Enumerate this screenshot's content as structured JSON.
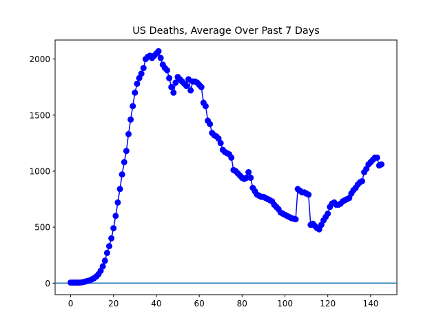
{
  "chart_data": {
    "type": "line",
    "title": "US Deaths, Average Over Past 7 Days",
    "x": [
      0,
      1,
      2,
      3,
      4,
      5,
      6,
      7,
      8,
      9,
      10,
      11,
      12,
      13,
      14,
      15,
      16,
      17,
      18,
      19,
      20,
      21,
      22,
      23,
      24,
      25,
      26,
      27,
      28,
      29,
      30,
      31,
      32,
      33,
      34,
      35,
      36,
      37,
      38,
      39,
      40,
      41,
      42,
      43,
      44,
      45,
      46,
      47,
      48,
      49,
      50,
      51,
      52,
      53,
      54,
      55,
      56,
      57,
      58,
      59,
      60,
      61,
      62,
      63,
      64,
      65,
      66,
      67,
      68,
      69,
      70,
      71,
      72,
      73,
      74,
      75,
      76,
      77,
      78,
      79,
      80,
      81,
      82,
      83,
      84,
      85,
      86,
      87,
      88,
      89,
      90,
      91,
      92,
      93,
      94,
      95,
      96,
      97,
      98,
      99,
      100,
      101,
      102,
      103,
      104,
      105,
      106,
      107,
      108,
      109,
      110,
      111,
      112,
      113,
      114,
      115,
      116,
      117,
      118,
      119,
      120,
      121,
      122,
      123,
      124,
      125,
      126,
      127,
      128,
      129,
      130,
      131,
      132,
      133,
      134,
      135,
      136,
      137,
      138,
      139,
      140,
      141,
      142,
      143,
      144,
      145
    ],
    "series": [
      {
        "color": "#0000ff",
        "values": [
          5,
          5,
          5,
          5,
          5,
          6,
          10,
          15,
          20,
          25,
          35,
          45,
          60,
          80,
          110,
          150,
          200,
          270,
          330,
          400,
          490,
          600,
          720,
          840,
          970,
          1080,
          1180,
          1330,
          1460,
          1580,
          1700,
          1780,
          1830,
          1870,
          1920,
          2000,
          2020,
          2030,
          2010,
          2030,
          2050,
          2070,
          2010,
          1950,
          1920,
          1900,
          1830,
          1750,
          1700,
          1790,
          1840,
          1820,
          1800,
          1780,
          1760,
          1820,
          1720,
          1800,
          1800,
          1790,
          1770,
          1750,
          1610,
          1580,
          1450,
          1420,
          1340,
          1320,
          1310,
          1290,
          1250,
          1190,
          1170,
          1160,
          1150,
          1120,
          1010,
          1000,
          980,
          960,
          940,
          930,
          940,
          990,
          940,
          850,
          820,
          790,
          780,
          770,
          770,
          760,
          750,
          740,
          730,
          700,
          680,
          660,
          630,
          620,
          610,
          600,
          590,
          580,
          575,
          570,
          840,
          825,
          810,
          810,
          800,
          790,
          520,
          530,
          510,
          490,
          480,
          520,
          560,
          590,
          620,
          680,
          710,
          720,
          700,
          700,
          710,
          730,
          740,
          750,
          760,
          800,
          830,
          850,
          880,
          900,
          910,
          990,
          1020,
          1060,
          1080,
          1100,
          1120,
          1120,
          1050,
          1060
        ]
      }
    ],
    "hline": 0,
    "hline_color": "#1f77b4",
    "xlim": [
      -7.25,
      152.25
    ],
    "xticks": [
      0,
      20,
      40,
      60,
      80,
      100,
      120,
      140
    ],
    "ylim": [
      -103,
      2170
    ],
    "yticks": [
      0,
      500,
      1000,
      1500,
      2000
    ]
  }
}
